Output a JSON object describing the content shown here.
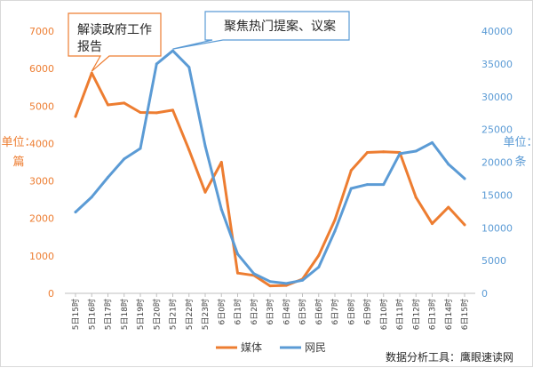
{
  "chart_data": {
    "type": "line",
    "categories": [
      "5日15时",
      "5日16时",
      "5日17时",
      "5日18时",
      "5日19时",
      "5日20时",
      "5日21时",
      "5日22时",
      "5日23时",
      "6日0时",
      "6日1时",
      "6日2时",
      "6日3时",
      "6日4时",
      "6日5时",
      "6日6时",
      "6日7时",
      "6日8时",
      "6日9时",
      "6日10时",
      "6日11时",
      "6日12时",
      "6日13时",
      "6日14时",
      "6日15时"
    ],
    "series": [
      {
        "name": "媒体",
        "axis": "left",
        "color": "#ED7D31",
        "values": [
          4720,
          5880,
          5030,
          5080,
          4830,
          4820,
          4890,
          3830,
          2700,
          3500,
          540,
          480,
          200,
          210,
          380,
          1010,
          1960,
          3280,
          3760,
          3780,
          3760,
          2560,
          1860,
          2300,
          1830
        ]
      },
      {
        "name": "网民",
        "axis": "right",
        "color": "#5B9BD5",
        "values": [
          12400,
          14700,
          17700,
          20500,
          22100,
          35000,
          37000,
          34500,
          22500,
          12800,
          6000,
          3000,
          1800,
          1500,
          2000,
          4000,
          9500,
          16000,
          16600,
          16600,
          21300,
          21700,
          23000,
          19700,
          17500
        ]
      }
    ],
    "y_left": {
      "label": "单位：篇",
      "ylim": [
        0,
        7000
      ],
      "ticks": [
        0,
        1000,
        2000,
        3000,
        4000,
        5000,
        6000,
        7000
      ],
      "color": "#ED7D31"
    },
    "y_right": {
      "label": "单位：条",
      "ylim": [
        0,
        40000
      ],
      "ticks": [
        0,
        5000,
        10000,
        15000,
        20000,
        25000,
        30000,
        35000,
        40000
      ],
      "color": "#5B9BD5"
    },
    "annotations": [
      {
        "text_lines": [
          "解读政府工作",
          "报告"
        ],
        "series": "媒体",
        "index": 1
      },
      {
        "text_lines": [
          "聚焦热门提案、议案"
        ],
        "series": "网民",
        "index": 6
      }
    ],
    "legend_position": "bottom",
    "grid": false
  },
  "source": "数据分析工具：鹰眼速读网"
}
